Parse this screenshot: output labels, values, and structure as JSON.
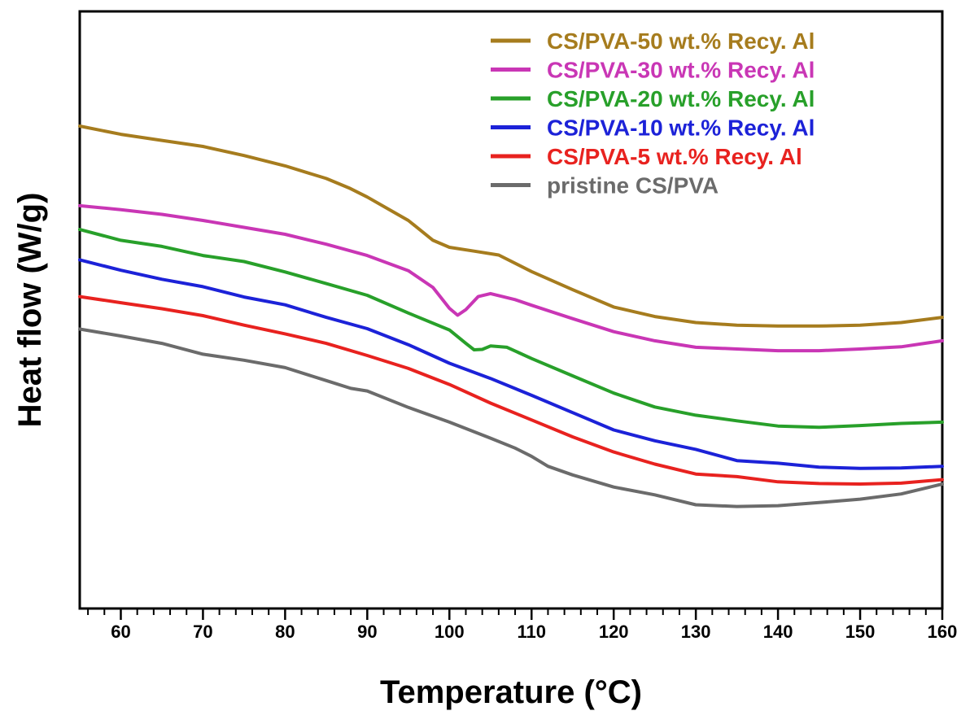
{
  "chart_data": {
    "type": "line",
    "title": "",
    "xlabel": "Temperature (°C)",
    "ylabel": "Heat flow (W/g)",
    "xlim": [
      55,
      160
    ],
    "ylim": [
      0,
      100
    ],
    "x_ticks": [
      60,
      70,
      80,
      90,
      100,
      110,
      120,
      130,
      140,
      150,
      160
    ],
    "minor_x_step": 2,
    "y_ticks_shown": false,
    "grid": false,
    "legend_position": "top-right",
    "series": [
      {
        "name": "CS/PVA-50 wt.% Recy. Al",
        "color": "#A67C1E",
        "points": [
          [
            55,
            100
          ],
          [
            60,
            98.1
          ],
          [
            65,
            96.7
          ],
          [
            70,
            95.3
          ],
          [
            75,
            93.2
          ],
          [
            80,
            90.8
          ],
          [
            85,
            87.9
          ],
          [
            87.8,
            85.7
          ],
          [
            90,
            83.6
          ],
          [
            95,
            78.2
          ],
          [
            98,
            73.6
          ],
          [
            100,
            72.0
          ],
          [
            103,
            71.1
          ],
          [
            106,
            70.2
          ],
          [
            110,
            66.4
          ],
          [
            115,
            62.2
          ],
          [
            120,
            58.2
          ],
          [
            125,
            56.0
          ],
          [
            130,
            54.6
          ],
          [
            135,
            54.0
          ],
          [
            140,
            53.8
          ],
          [
            145,
            53.8
          ],
          [
            150,
            54.0
          ],
          [
            155,
            54.6
          ],
          [
            160,
            55.8
          ]
        ]
      },
      {
        "name": "CS/PVA-30 wt.% Recy. Al",
        "color": "#C936B5",
        "points": [
          [
            55,
            81.6
          ],
          [
            60,
            80.7
          ],
          [
            65,
            79.6
          ],
          [
            70,
            78.2
          ],
          [
            75,
            76.6
          ],
          [
            80,
            75.0
          ],
          [
            85,
            72.7
          ],
          [
            90,
            70.1
          ],
          [
            95,
            66.6
          ],
          [
            98,
            62.7
          ],
          [
            100,
            57.9
          ],
          [
            101,
            56.3
          ],
          [
            102,
            57.6
          ],
          [
            103.5,
            60.6
          ],
          [
            105,
            61.3
          ],
          [
            108,
            59.9
          ],
          [
            110,
            58.6
          ],
          [
            115,
            55.5
          ],
          [
            120,
            52.5
          ],
          [
            125,
            50.4
          ],
          [
            130,
            48.9
          ],
          [
            135,
            48.5
          ],
          [
            140,
            48.1
          ],
          [
            145,
            48.1
          ],
          [
            150,
            48.5
          ],
          [
            155,
            49.0
          ],
          [
            160,
            50.4
          ]
        ]
      },
      {
        "name": "CS/PVA-20 wt.% Recy. Al",
        "color": "#28A02A",
        "points": [
          [
            55,
            76.1
          ],
          [
            60,
            73.6
          ],
          [
            65,
            72.2
          ],
          [
            70,
            70.1
          ],
          [
            75,
            68.7
          ],
          [
            80,
            66.3
          ],
          [
            85,
            63.6
          ],
          [
            90,
            60.9
          ],
          [
            95,
            56.8
          ],
          [
            100,
            52.9
          ],
          [
            102,
            49.8
          ],
          [
            103,
            48.3
          ],
          [
            104,
            48.4
          ],
          [
            105,
            49.2
          ],
          [
            107,
            48.9
          ],
          [
            110,
            46.3
          ],
          [
            115,
            42.3
          ],
          [
            120,
            38.3
          ],
          [
            125,
            35.1
          ],
          [
            130,
            33.2
          ],
          [
            135,
            31.9
          ],
          [
            140,
            30.7
          ],
          [
            145,
            30.4
          ],
          [
            150,
            30.8
          ],
          [
            155,
            31.3
          ],
          [
            160,
            31.6
          ]
        ]
      },
      {
        "name": "CS/PVA-10 wt.% Recy. Al",
        "color": "#1C22D8",
        "points": [
          [
            55,
            69.1
          ],
          [
            60,
            66.7
          ],
          [
            65,
            64.6
          ],
          [
            70,
            62.9
          ],
          [
            75,
            60.5
          ],
          [
            80,
            58.7
          ],
          [
            85,
            55.8
          ],
          [
            90,
            53.2
          ],
          [
            95,
            49.5
          ],
          [
            100,
            45.2
          ],
          [
            105,
            41.7
          ],
          [
            110,
            37.8
          ],
          [
            115,
            33.8
          ],
          [
            120,
            29.8
          ],
          [
            125,
            27.3
          ],
          [
            130,
            25.3
          ],
          [
            135,
            22.7
          ],
          [
            140,
            22.1
          ],
          [
            145,
            21.2
          ],
          [
            150,
            20.9
          ],
          [
            155,
            21.0
          ],
          [
            160,
            21.4
          ]
        ]
      },
      {
        "name": "CS/PVA-5 wt.% Recy. Al",
        "color": "#E8221F",
        "points": [
          [
            55,
            60.6
          ],
          [
            60,
            59.2
          ],
          [
            65,
            57.8
          ],
          [
            70,
            56.2
          ],
          [
            75,
            54.0
          ],
          [
            80,
            52.0
          ],
          [
            85,
            49.8
          ],
          [
            90,
            47.0
          ],
          [
            95,
            44.0
          ],
          [
            100,
            40.3
          ],
          [
            105,
            36.0
          ],
          [
            110,
            32.1
          ],
          [
            115,
            28.2
          ],
          [
            120,
            24.7
          ],
          [
            125,
            21.9
          ],
          [
            130,
            19.6
          ],
          [
            135,
            19.0
          ],
          [
            140,
            17.8
          ],
          [
            145,
            17.4
          ],
          [
            150,
            17.3
          ],
          [
            155,
            17.5
          ],
          [
            160,
            18.3
          ]
        ]
      },
      {
        "name": "pristine CS/PVA",
        "color": "#6B6B6B",
        "points": [
          [
            55,
            53.1
          ],
          [
            60,
            51.5
          ],
          [
            65,
            49.8
          ],
          [
            70,
            47.3
          ],
          [
            75,
            45.9
          ],
          [
            80,
            44.2
          ],
          [
            85,
            41.2
          ],
          [
            88,
            39.4
          ],
          [
            90,
            38.8
          ],
          [
            95,
            35.0
          ],
          [
            100,
            31.6
          ],
          [
            105,
            27.9
          ],
          [
            108,
            25.6
          ],
          [
            110,
            23.7
          ],
          [
            112,
            21.4
          ],
          [
            115,
            19.4
          ],
          [
            120,
            16.6
          ],
          [
            125,
            14.8
          ],
          [
            130,
            12.5
          ],
          [
            135,
            12.1
          ],
          [
            140,
            12.3
          ],
          [
            145,
            13.0
          ],
          [
            150,
            13.8
          ],
          [
            155,
            15.0
          ],
          [
            160,
            17.3
          ]
        ]
      }
    ]
  }
}
